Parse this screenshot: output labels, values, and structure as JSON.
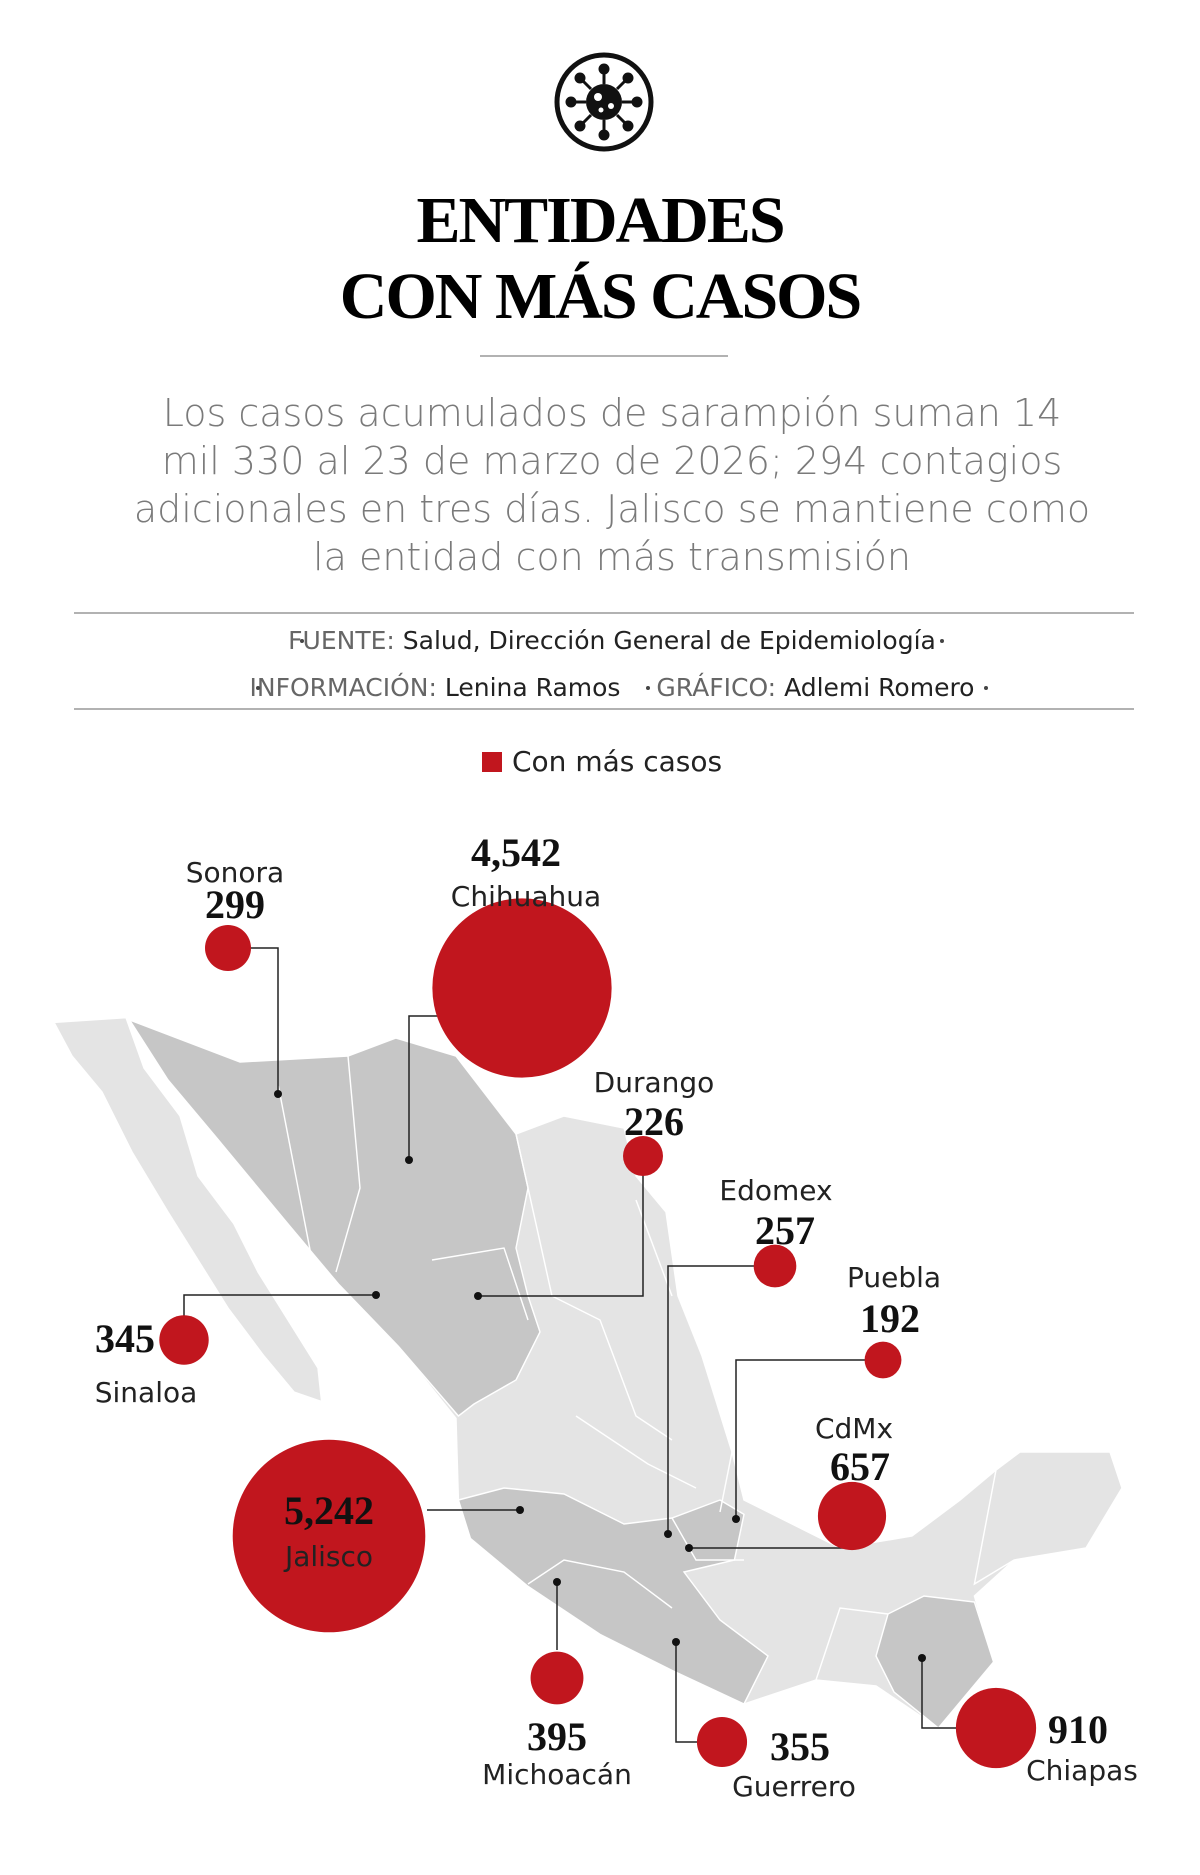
{
  "header": {
    "title_lines": [
      "ENTIDADES",
      "CON MÁS CASOS"
    ],
    "description_lines": [
      "Los casos acumulados de sarampión suman 14",
      "mil 330 al 23 de marzo de 2026; 294 contagios",
      "adicionales en tres días. Jalisco se mantiene como",
      "la entidad con más transmisión"
    ]
  },
  "credits": {
    "source": {
      "label": "FUENTE:",
      "value": "Salud, Dirección General de Epidemiología"
    },
    "people": [
      {
        "label": "INFORMACIÓN:",
        "value": "Lenina Ramos"
      },
      {
        "label": "GRÁFICO:",
        "value": "Adlemi Romero"
      }
    ]
  },
  "legend": {
    "label": "Con más casos",
    "color": "#c1161e"
  },
  "states": [
    {
      "name": "Sonora",
      "value": 299,
      "label": "299"
    },
    {
      "name": "Chihuahua",
      "value": 4542,
      "label": "4,542"
    },
    {
      "name": "Durango",
      "value": 226,
      "label": "226"
    },
    {
      "name": "Edomex",
      "value": 257,
      "label": "257"
    },
    {
      "name": "Puebla",
      "value": 192,
      "label": "192"
    },
    {
      "name": "CdMx",
      "value": 657,
      "label": "657"
    },
    {
      "name": "Sinaloa",
      "value": 345,
      "label": "345"
    },
    {
      "name": "Jalisco",
      "value": 5242,
      "label": "5,242"
    },
    {
      "name": "Michoacán",
      "value": 395,
      "label": "395"
    },
    {
      "name": "Guerrero",
      "value": 355,
      "label": "355"
    },
    {
      "name": "Chiapas",
      "value": 910,
      "label": "910"
    }
  ]
}
